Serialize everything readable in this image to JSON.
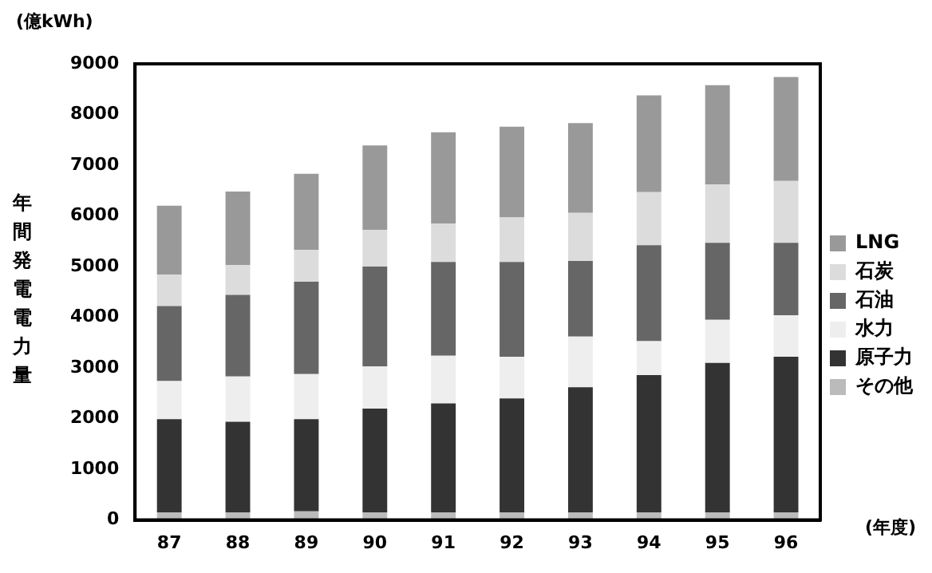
{
  "chart_data": {
    "type": "bar",
    "stacked": true,
    "ylabel": "年間発電電力量",
    "xlabel": "(年度)",
    "annotations": [
      "(億kWh)"
    ],
    "categories": [
      "87",
      "88",
      "89",
      "90",
      "91",
      "92",
      "93",
      "94",
      "95",
      "96"
    ],
    "ylim": [
      0,
      9000
    ],
    "yticks": [
      0,
      1000,
      2000,
      3000,
      4000,
      5000,
      6000,
      7000,
      8000,
      9000
    ],
    "grid": false,
    "legend": "right",
    "series": [
      {
        "name": "その他",
        "color": "#bbbbbb",
        "values": [
          150,
          150,
          170,
          150,
          150,
          150,
          150,
          150,
          150,
          150
        ]
      },
      {
        "name": "原子力",
        "color": "#333333",
        "values": [
          1840,
          1790,
          1820,
          2050,
          2150,
          2250,
          2470,
          2710,
          2950,
          3070
        ]
      },
      {
        "name": "水力",
        "color": "#eeeeee",
        "values": [
          750,
          890,
          890,
          830,
          940,
          820,
          1000,
          670,
          850,
          820
        ]
      },
      {
        "name": "石油",
        "color": "#666666",
        "values": [
          1480,
          1610,
          1820,
          1970,
          1850,
          1870,
          1490,
          1890,
          1520,
          1430
        ]
      },
      {
        "name": "石炭",
        "color": "#dcdcdc",
        "values": [
          620,
          590,
          630,
          720,
          760,
          880,
          950,
          1050,
          1150,
          1220
        ]
      },
      {
        "name": "LNG",
        "color": "#999999",
        "values": [
          1360,
          1450,
          1500,
          1670,
          1800,
          1790,
          1770,
          1910,
          1960,
          2050
        ]
      }
    ]
  }
}
